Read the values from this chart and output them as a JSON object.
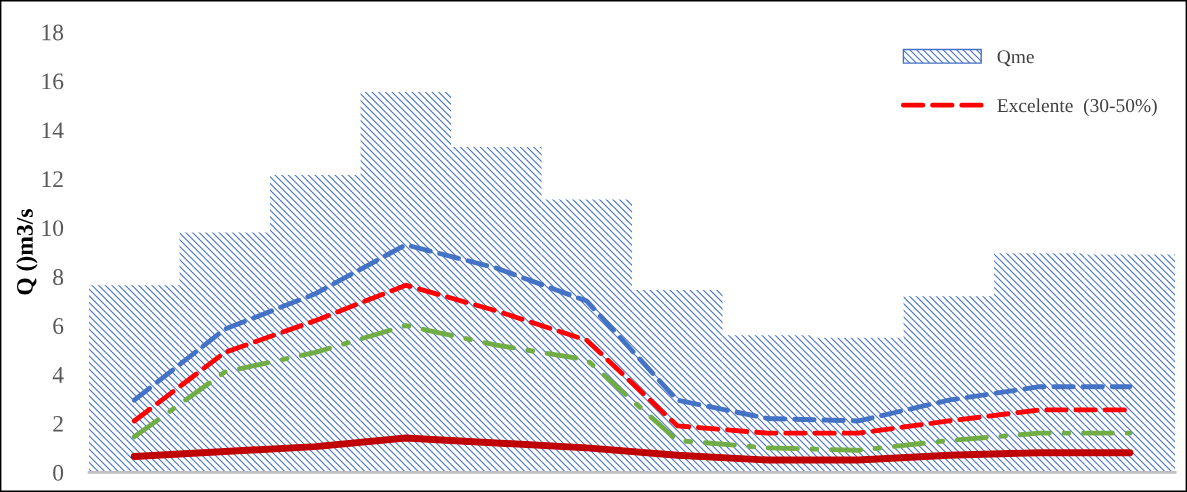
{
  "chart_data": {
    "type": "bar",
    "ylabel": "Q ()m3/s",
    "categories": [
      null,
      null,
      null,
      null,
      null,
      null,
      null,
      null,
      null,
      null,
      null,
      null
    ],
    "ylim": [
      0,
      18
    ],
    "yticks": [
      0,
      2,
      4,
      6,
      8,
      10,
      12,
      14,
      16,
      18
    ],
    "grid": false,
    "legend": "top right",
    "series": [
      {
        "name": "Qme",
        "color": "#4472c4",
        "values": [
          7.65,
          9.8,
          12.15,
          15.55,
          13.3,
          11.15,
          7.45,
          5.6,
          5.5,
          7.2,
          8.95,
          8.9
        ]
      },
      {
        "type": "line",
        "line_style": "dashed",
        "color": "#4472c4",
        "values": [
          2.95,
          5.85,
          7.3,
          9.3,
          8.35,
          7.0,
          2.95,
          2.2,
          2.1,
          2.95,
          3.5,
          3.5
        ]
      },
      {
        "name": "Excelente  (30-50%)",
        "type": "line",
        "line_style": "dashed",
        "color": "#ff0000",
        "values": [
          2.1,
          4.9,
          6.2,
          7.65,
          6.6,
          5.4,
          1.9,
          1.6,
          1.6,
          2.1,
          2.55,
          2.55
        ]
      },
      {
        "type": "line",
        "line_style": "dashdot",
        "color": "#70ad47",
        "values": [
          1.45,
          4.1,
          4.9,
          6.0,
          5.2,
          4.6,
          1.3,
          1.0,
          0.9,
          1.3,
          1.6,
          1.6
        ]
      },
      {
        "type": "line",
        "line_style": "solid",
        "color": "#c00000",
        "values": [
          0.65,
          0.85,
          1.05,
          1.4,
          1.2,
          1.0,
          0.7,
          0.5,
          0.5,
          0.7,
          0.8,
          0.8
        ]
      }
    ]
  }
}
